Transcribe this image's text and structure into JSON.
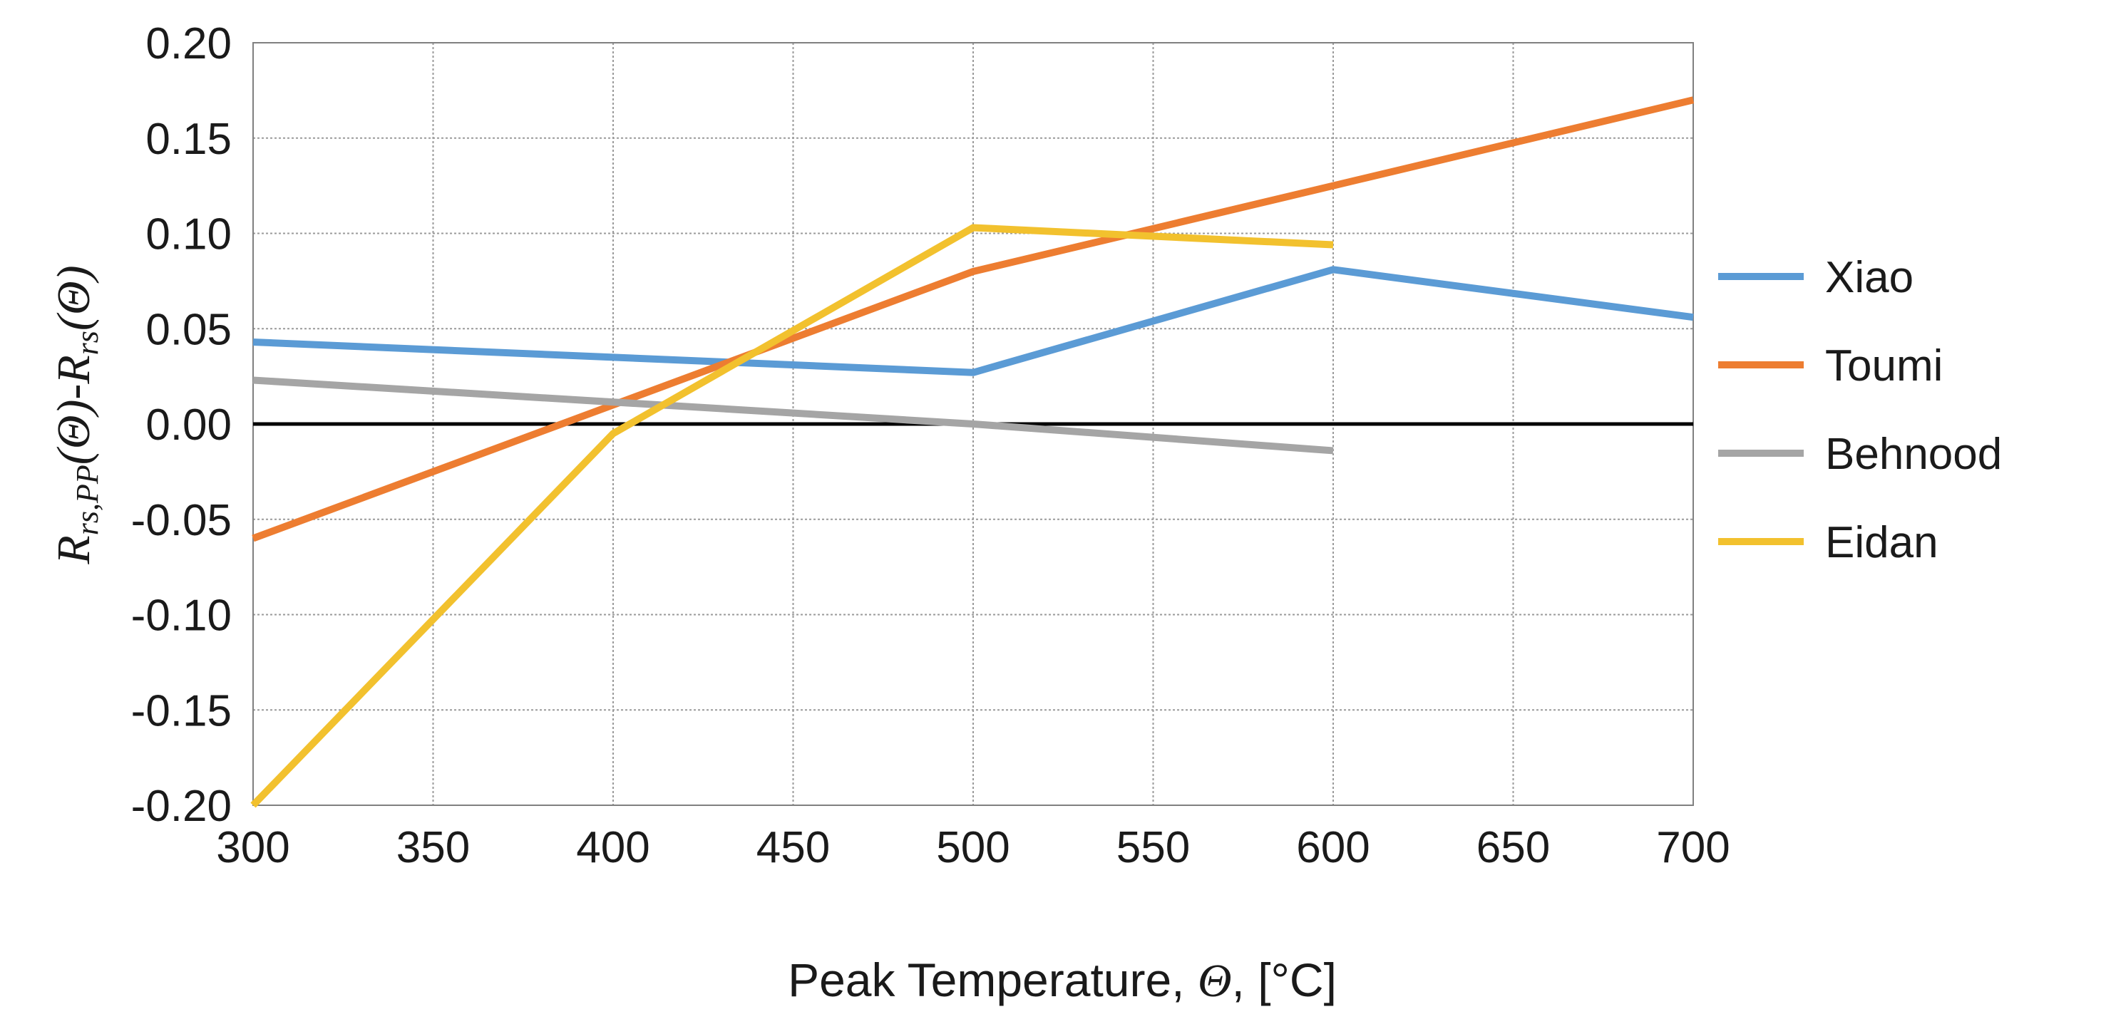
{
  "chart_data": {
    "type": "line",
    "title": "",
    "xlabel": "Peak Temperature, Θ, [°C]",
    "xlabel_parts": {
      "prefix": "Peak Temperature, ",
      "symbol": "Θ",
      "suffix": ", [°C]"
    },
    "ylabel": "R_rs,PP(Θ)-R_rs(Θ)",
    "ylabel_parts": {
      "main": "R",
      "sub1": "rs,PP",
      "mid": "(Θ)-R",
      "sub2": "rs",
      "end": "(Θ)"
    },
    "xlim": [
      300,
      700
    ],
    "ylim": [
      -0.2,
      0.2
    ],
    "x_ticks": [
      300,
      350,
      400,
      450,
      500,
      550,
      600,
      650,
      700
    ],
    "x_tick_labels": [
      "300",
      "350",
      "400",
      "450",
      "500",
      "550",
      "600",
      "650",
      "700"
    ],
    "y_ticks": [
      0.2,
      0.15,
      0.1,
      0.05,
      0.0,
      -0.05,
      -0.1,
      -0.15,
      -0.2
    ],
    "y_tick_labels": [
      "0.20",
      "0.15",
      "0.10",
      "0.05",
      "0.00",
      "-0.05",
      "-0.10",
      "-0.15",
      "-0.20"
    ],
    "grid": true,
    "legend_position": "right",
    "series": [
      {
        "name": "Xiao",
        "color": "#5B9BD5",
        "x": [
          300,
          500,
          600,
          700
        ],
        "y": [
          0.043,
          0.027,
          0.081,
          0.056
        ]
      },
      {
        "name": "Toumi",
        "color": "#ED7D31",
        "x": [
          300,
          500,
          600,
          700
        ],
        "y": [
          -0.06,
          0.08,
          0.125,
          0.17
        ]
      },
      {
        "name": "Behnood",
        "color": "#A5A5A5",
        "x": [
          300,
          500,
          600
        ],
        "y": [
          0.023,
          0.0,
          -0.014
        ]
      },
      {
        "name": "Eidan",
        "color": "#F2C12E",
        "x": [
          300,
          400,
          500,
          600
        ],
        "y": [
          -0.2,
          -0.005,
          0.103,
          0.094
        ]
      }
    ]
  }
}
